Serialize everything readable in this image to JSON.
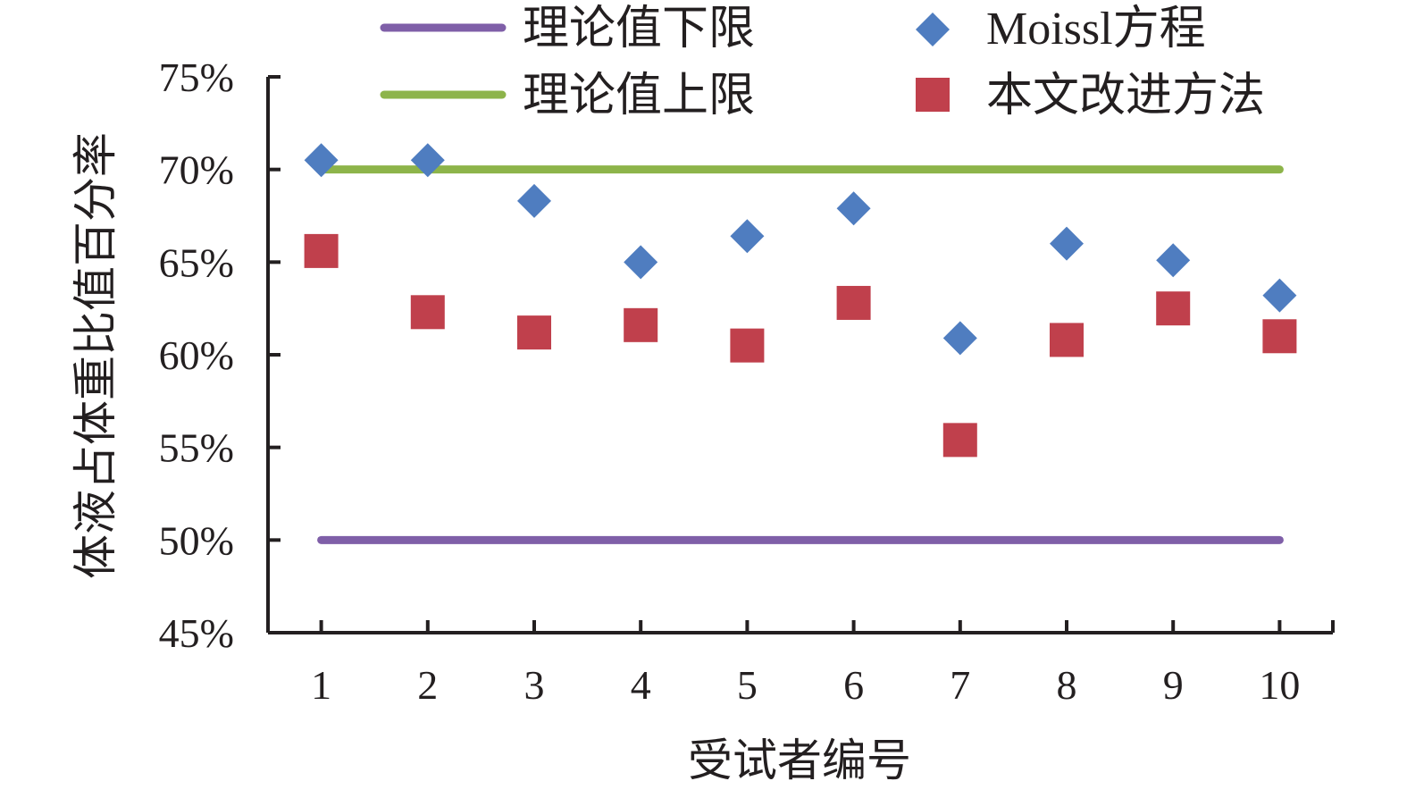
{
  "chart_data": {
    "type": "scatter",
    "xlabel": "受试者编号",
    "ylabel": "体液占体重比值百分率",
    "x": [
      1,
      2,
      3,
      4,
      5,
      6,
      7,
      8,
      9,
      10
    ],
    "x_tick_labels": [
      "1",
      "2",
      "3",
      "4",
      "5",
      "6",
      "7",
      "8",
      "9",
      "10"
    ],
    "xlim": [
      0.5,
      10.5
    ],
    "ylim": [
      45,
      75
    ],
    "y_ticks": [
      45,
      50,
      55,
      60,
      65,
      70,
      75
    ],
    "y_tick_labels": [
      "45%",
      "50%",
      "55%",
      "60%",
      "65%",
      "70%",
      "75%"
    ],
    "grid": false,
    "legend_position": "top",
    "series": [
      {
        "name": "理论值下限",
        "kind": "line",
        "marker": "none",
        "color": "#7f5fa8",
        "values": [
          50,
          50,
          50,
          50,
          50,
          50,
          50,
          50,
          50,
          50
        ]
      },
      {
        "name": "理论值上限",
        "kind": "line",
        "marker": "none",
        "color": "#8db44a",
        "values": [
          70,
          70,
          70,
          70,
          70,
          70,
          70,
          70,
          70,
          70
        ]
      },
      {
        "name": "Moissl方程",
        "kind": "scatter",
        "marker": "diamond",
        "color": "#4f7dc0",
        "values": [
          70.5,
          70.5,
          68.3,
          65.0,
          66.4,
          67.9,
          60.9,
          66.0,
          65.1,
          63.2
        ]
      },
      {
        "name": "本文改进方法",
        "kind": "scatter",
        "marker": "square",
        "color": "#c0404c",
        "values": [
          65.6,
          62.3,
          61.2,
          61.6,
          60.5,
          62.8,
          55.4,
          60.8,
          62.5,
          61.0
        ]
      }
    ]
  }
}
